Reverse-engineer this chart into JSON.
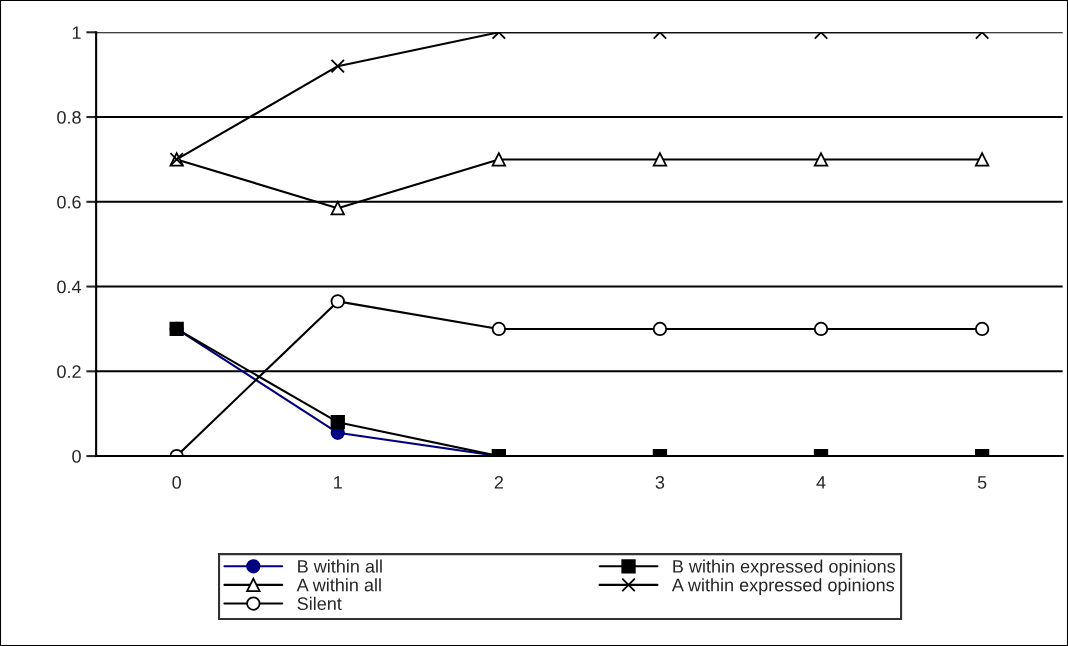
{
  "chart_data": {
    "type": "line",
    "categories": [
      "0",
      "1",
      "2",
      "3",
      "4",
      "5"
    ],
    "series": [
      {
        "name": "B within all",
        "color": "#000080",
        "marker": "circle",
        "values": [
          0.3,
          0.055,
          0,
          0,
          null,
          null
        ]
      },
      {
        "name": "B within expressed opinions",
        "color": "#000000",
        "marker": "square",
        "values": [
          0.3,
          0.08,
          0,
          0,
          0,
          0
        ]
      },
      {
        "name": "A within all",
        "color": "#000000",
        "marker": "triangle",
        "values": [
          0.7,
          0.585,
          0.7,
          0.7,
          0.7,
          0.7
        ]
      },
      {
        "name": "A within expressed opinions",
        "color": "#000000",
        "marker": "cross",
        "values": [
          0.7,
          0.92,
          1,
          1,
          1,
          1
        ]
      },
      {
        "name": "Silent",
        "color": "#000000",
        "marker": "circle",
        "values": [
          0,
          0.365,
          0.3,
          0.3,
          0.3,
          0.3
        ]
      }
    ],
    "ylim": [
      0,
      1
    ],
    "yticks": [
      0,
      0.2,
      0.4,
      0.6,
      0.8,
      1
    ],
    "grid": "y",
    "legend": "bottom",
    "line_style": "solid"
  }
}
